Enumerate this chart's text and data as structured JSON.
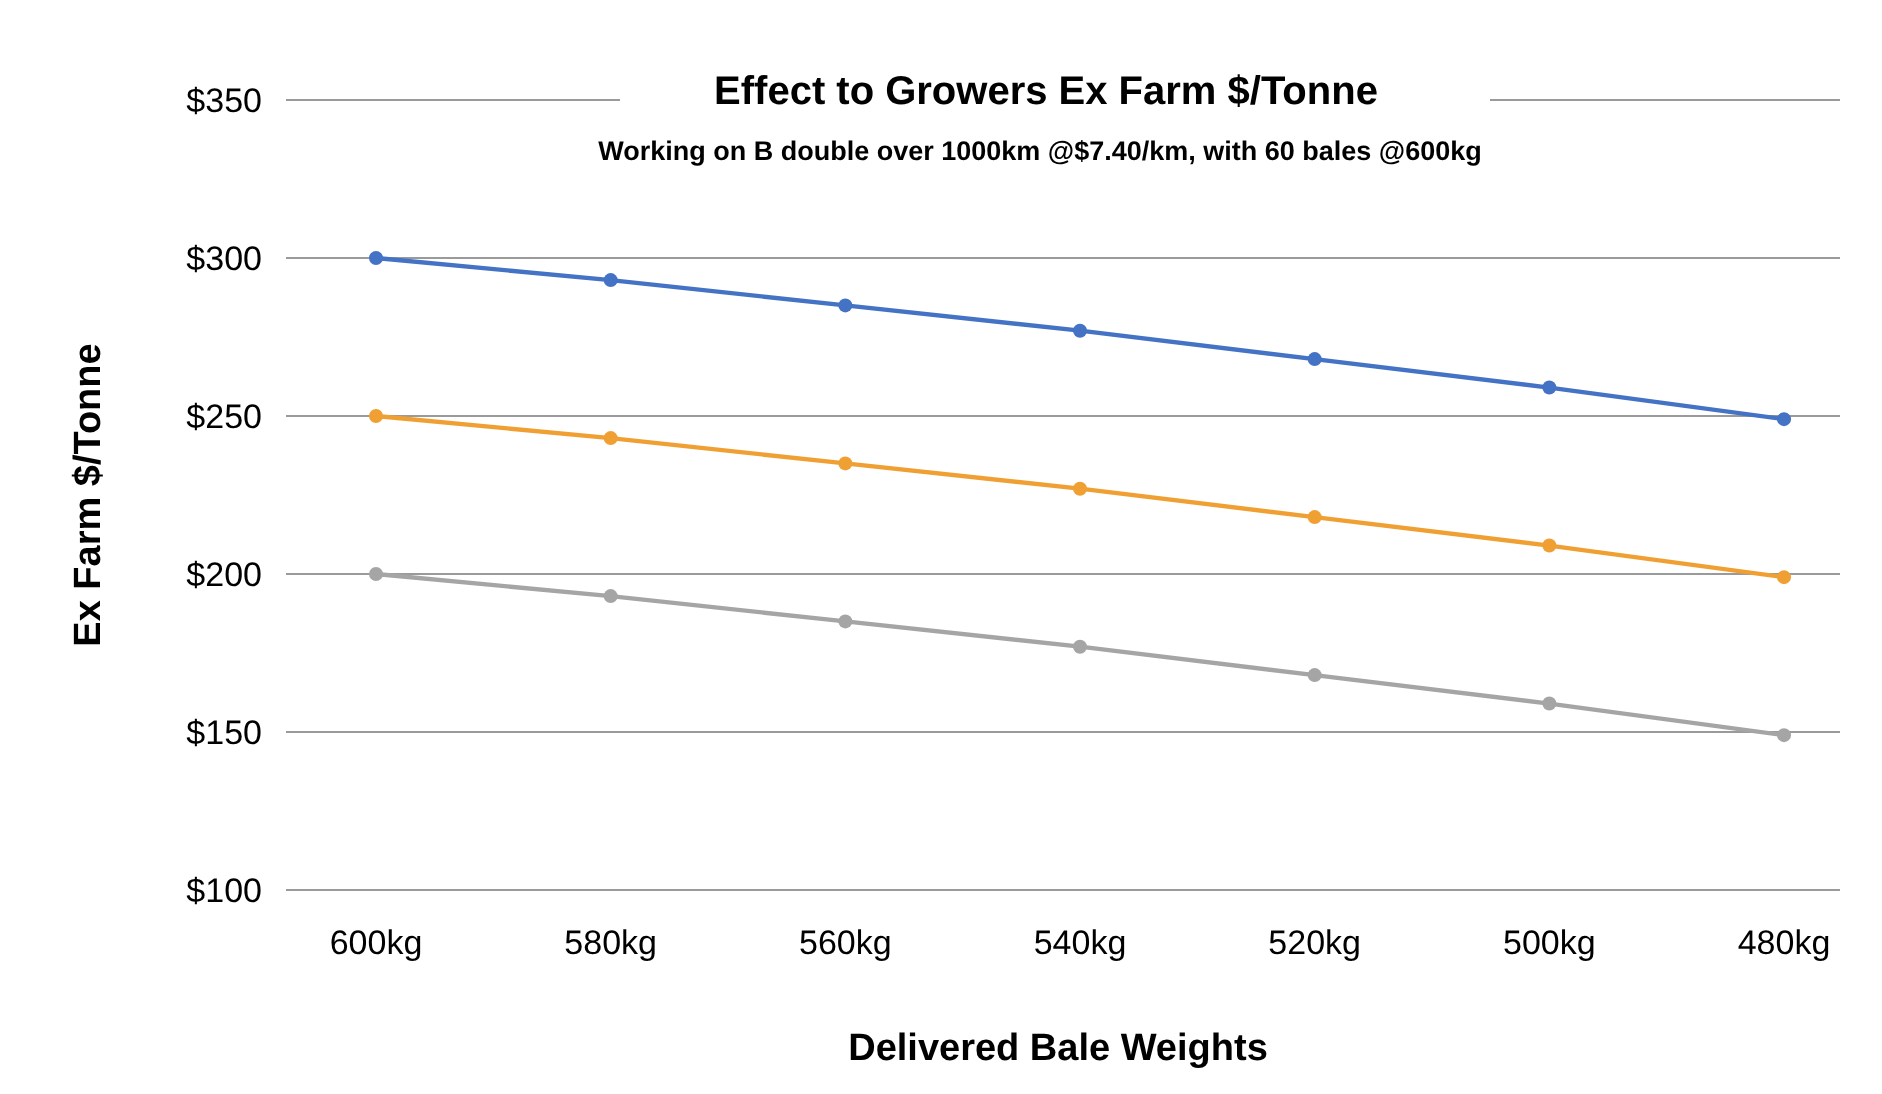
{
  "chart_data": {
    "type": "line",
    "title": "Effect to Growers Ex Farm $/Tonne",
    "subtitle": "Working on  B double over 1000km @$7.40/km, with 60 bales @600kg",
    "xlabel": "Delivered Bale Weights",
    "ylabel": "Ex Farm  $/Tonne",
    "categories": [
      "600kg",
      "580kg",
      "560kg",
      "540kg",
      "520kg",
      "500kg",
      "480kg"
    ],
    "series": [
      {
        "color": "#4472c4",
        "values": [
          300,
          293,
          285,
          277,
          268,
          259,
          249
        ]
      },
      {
        "color": "#f0a033",
        "values": [
          250,
          243,
          235,
          227,
          218,
          209,
          199
        ]
      },
      {
        "color": "#a5a5a5",
        "values": [
          200,
          193,
          185,
          177,
          168,
          159,
          149
        ]
      }
    ],
    "ylim": [
      100,
      350
    ],
    "yticks": [
      {
        "value": 100,
        "label": "$100"
      },
      {
        "value": 150,
        "label": "$150"
      },
      {
        "value": 200,
        "label": "$200"
      },
      {
        "value": 250,
        "label": "$250"
      },
      {
        "value": 300,
        "label": "$300"
      },
      {
        "value": 350,
        "label": "$350"
      }
    ],
    "grid": "y",
    "marker": "circle",
    "line_style": "solid"
  }
}
